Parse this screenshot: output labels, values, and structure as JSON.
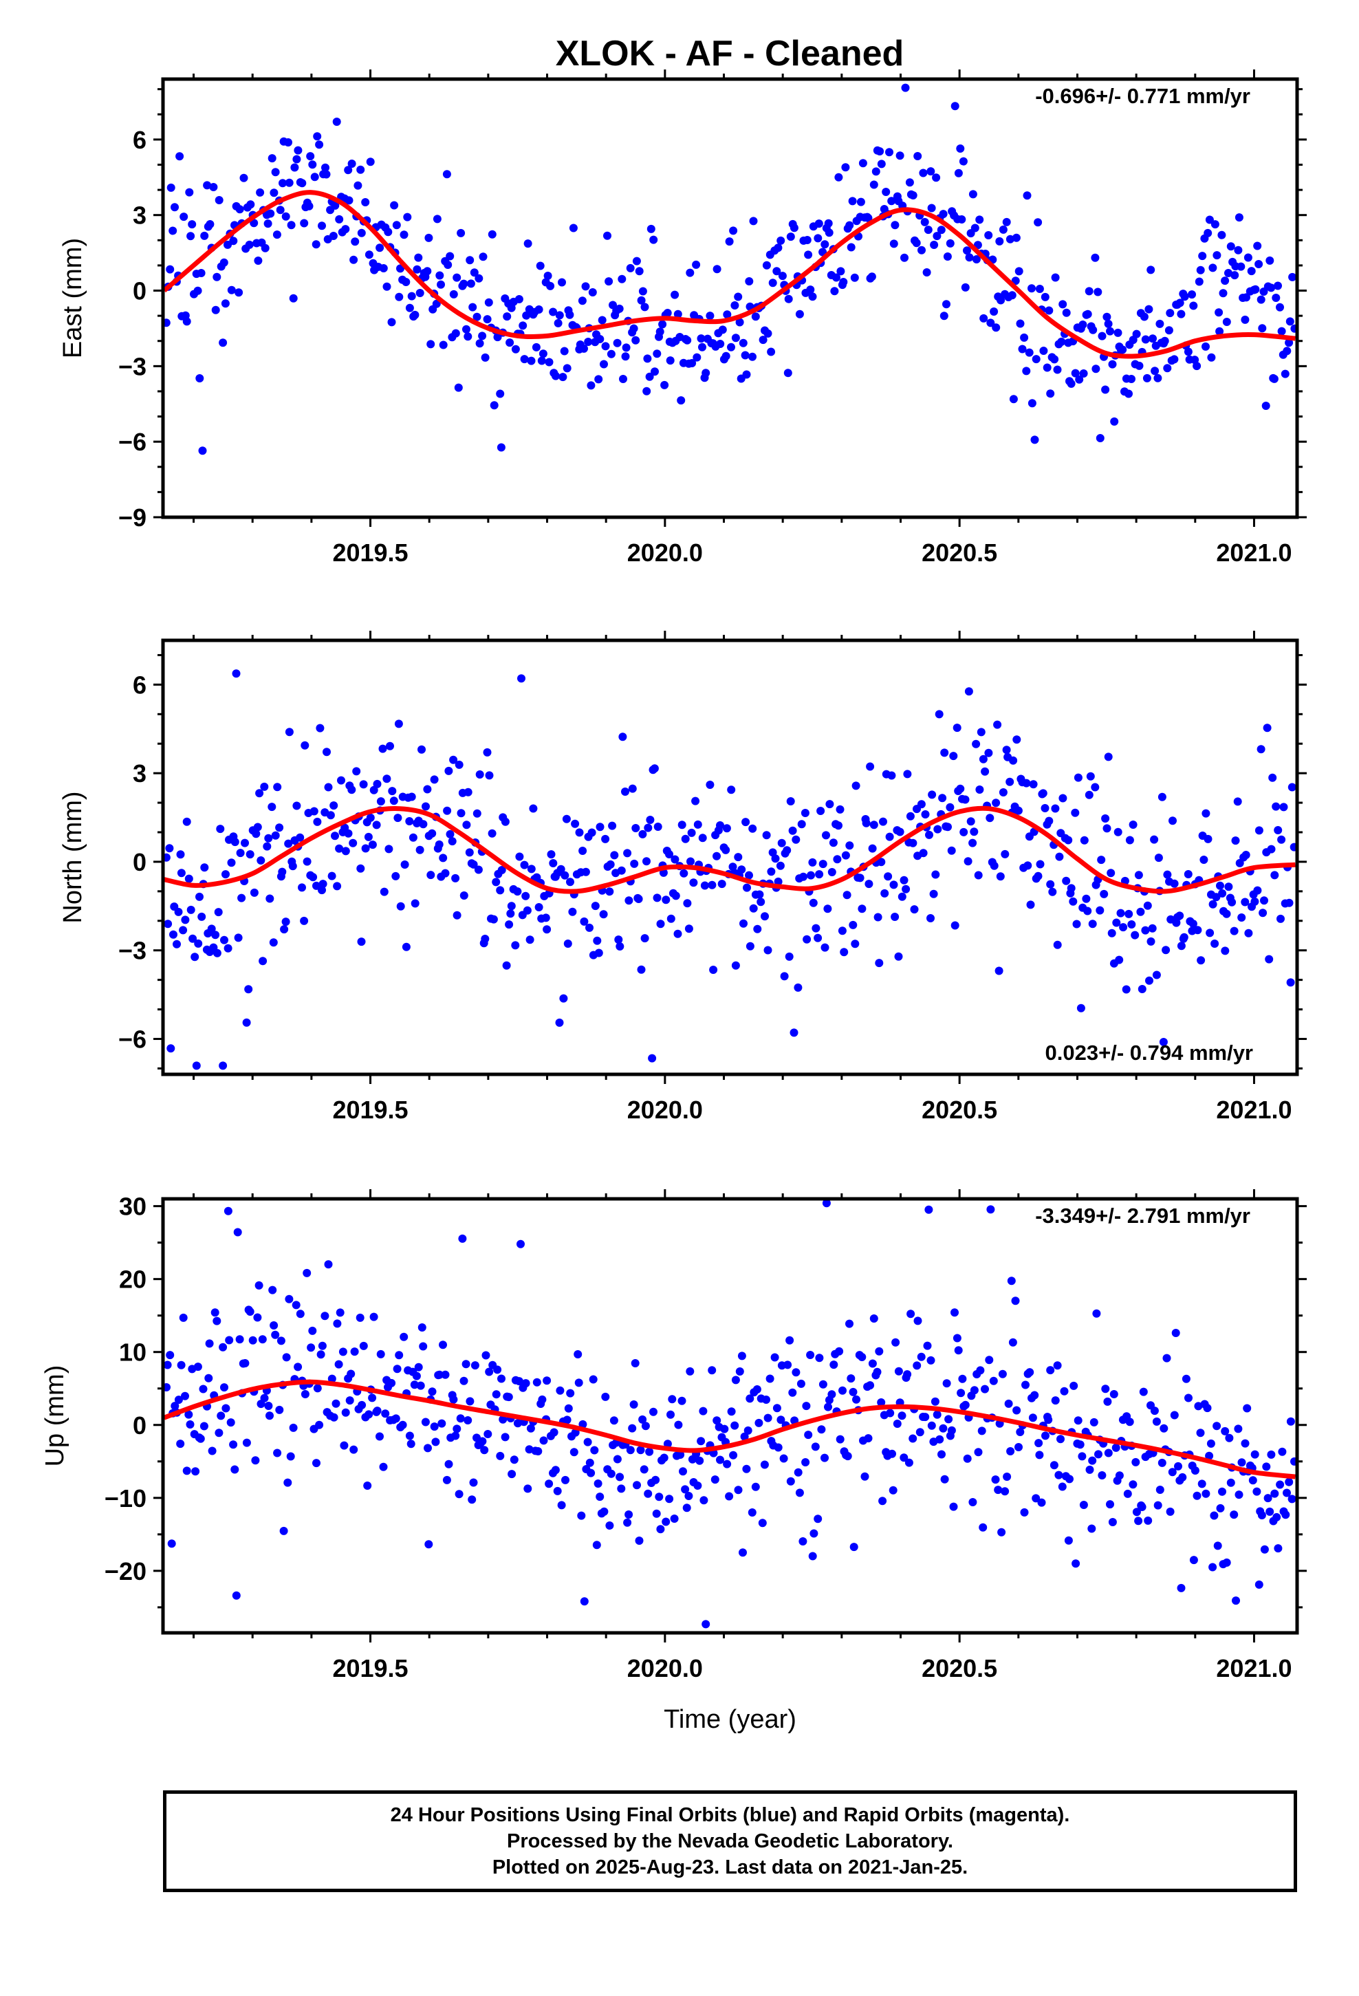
{
  "chart_data": [
    {
      "type": "scatter",
      "title": "XLOK  - AF - Cleaned",
      "xlabel": "",
      "ylabel": "East (mm)",
      "xlim": [
        2019.148,
        2021.073
      ],
      "ylim": [
        -9,
        8.4
      ],
      "xticks": [
        2019.5,
        2020.0,
        2020.5,
        2021.0
      ],
      "xtick_labels": [
        "2019.5",
        "2020.0",
        "2020.5",
        "2021.0"
      ],
      "yticks": [
        -9,
        -6,
        -3,
        0,
        3,
        6
      ],
      "ytick_labels": [
        "−9",
        "−6",
        "−3",
        "0",
        "3",
        "6"
      ],
      "rate_text": "-0.696+/- 0.771 mm/yr",
      "series": [
        {
          "role": "points",
          "color": "#0000ff",
          "mean": [
            [
              2019.15,
              0
            ],
            [
              2019.25,
              1.6
            ],
            [
              2019.32,
              3.1
            ],
            [
              2019.42,
              3.9
            ],
            [
              2019.5,
              2.8
            ],
            [
              2019.6,
              0.3
            ],
            [
              2019.7,
              -1.4
            ],
            [
              2019.78,
              -1.8
            ],
            [
              2019.85,
              -1.6
            ],
            [
              2019.93,
              -1.5
            ],
            [
              2020.0,
              -1.8
            ],
            [
              2020.1,
              -1.6
            ],
            [
              2020.18,
              -0.5
            ],
            [
              2020.25,
              1.0
            ],
            [
              2020.32,
              2.5
            ],
            [
              2020.4,
              3.3
            ],
            [
              2020.47,
              2.6
            ],
            [
              2020.55,
              0.7
            ],
            [
              2020.62,
              -0.6
            ],
            [
              2020.7,
              -2.0
            ],
            [
              2020.78,
              -2.8
            ],
            [
              2020.85,
              -2.3
            ],
            [
              2020.93,
              1.0
            ],
            [
              2021.0,
              0.3
            ],
            [
              2021.07,
              -0.8
            ]
          ]
        },
        {
          "role": "fit",
          "color": "#ff0000",
          "values": [
            [
              2019.15,
              0
            ],
            [
              2019.2,
              1.0
            ],
            [
              2019.25,
              2.0
            ],
            [
              2019.3,
              2.9
            ],
            [
              2019.35,
              3.6
            ],
            [
              2019.4,
              3.9
            ],
            [
              2019.45,
              3.5
            ],
            [
              2019.5,
              2.5
            ],
            [
              2019.55,
              1.2
            ],
            [
              2019.6,
              0
            ],
            [
              2019.65,
              -0.9
            ],
            [
              2019.7,
              -1.5
            ],
            [
              2019.75,
              -1.8
            ],
            [
              2019.8,
              -1.8
            ],
            [
              2019.85,
              -1.6
            ],
            [
              2019.9,
              -1.4
            ],
            [
              2019.95,
              -1.2
            ],
            [
              2020.0,
              -1.1
            ],
            [
              2020.05,
              -1.2
            ],
            [
              2020.1,
              -1.2
            ],
            [
              2020.15,
              -0.8
            ],
            [
              2020.2,
              0
            ],
            [
              2020.25,
              0.9
            ],
            [
              2020.3,
              1.9
            ],
            [
              2020.35,
              2.7
            ],
            [
              2020.4,
              3.2
            ],
            [
              2020.45,
              3.0
            ],
            [
              2020.5,
              2.2
            ],
            [
              2020.55,
              1.1
            ],
            [
              2020.6,
              0
            ],
            [
              2020.65,
              -1.1
            ],
            [
              2020.7,
              -1.9
            ],
            [
              2020.75,
              -2.5
            ],
            [
              2020.8,
              -2.6
            ],
            [
              2020.85,
              -2.4
            ],
            [
              2020.9,
              -2.0
            ],
            [
              2020.95,
              -1.8
            ],
            [
              2021.0,
              -1.75
            ],
            [
              2021.07,
              -1.9
            ]
          ]
        }
      ]
    },
    {
      "type": "scatter",
      "xlabel": "",
      "ylabel": "North (mm)",
      "xlim": [
        2019.148,
        2021.073
      ],
      "ylim": [
        -7.2,
        7.5
      ],
      "xticks": [
        2019.5,
        2020.0,
        2020.5,
        2021.0
      ],
      "xtick_labels": [
        "2019.5",
        "2020.0",
        "2020.5",
        "2021.0"
      ],
      "yticks": [
        -6,
        -3,
        0,
        3,
        6
      ],
      "ytick_labels": [
        "−6",
        "−3",
        "0",
        "3",
        "6"
      ],
      "rate_text": "0.023+/- 0.794 mm/yr",
      "series": [
        {
          "role": "points",
          "color": "#0000ff",
          "mean": [
            [
              2019.15,
              -0.8
            ],
            [
              2019.22,
              -1.2
            ],
            [
              2019.3,
              -0.5
            ],
            [
              2019.38,
              0.5
            ],
            [
              2019.46,
              1.0
            ],
            [
              2019.55,
              1.7
            ],
            [
              2019.62,
              1.2
            ],
            [
              2019.7,
              0.3
            ],
            [
              2019.78,
              -0.8
            ],
            [
              2019.85,
              -1.0
            ],
            [
              2019.92,
              -0.8
            ],
            [
              2020.0,
              -0.4
            ],
            [
              2020.08,
              -0.3
            ],
            [
              2020.15,
              -0.7
            ],
            [
              2020.22,
              -1.0
            ],
            [
              2020.3,
              -0.6
            ],
            [
              2020.38,
              0.5
            ],
            [
              2020.45,
              1.4
            ],
            [
              2020.52,
              2.2
            ],
            [
              2020.6,
              1.5
            ],
            [
              2020.67,
              0.6
            ],
            [
              2020.75,
              -0.8
            ],
            [
              2020.83,
              -1.5
            ],
            [
              2020.9,
              -1.6
            ],
            [
              2020.97,
              -0.3
            ],
            [
              2021.05,
              0
            ]
          ]
        },
        {
          "role": "fit",
          "color": "#ff0000",
          "values": [
            [
              2019.15,
              -0.6
            ],
            [
              2019.2,
              -0.8
            ],
            [
              2019.25,
              -0.7
            ],
            [
              2019.3,
              -0.4
            ],
            [
              2019.35,
              0.2
            ],
            [
              2019.4,
              0.8
            ],
            [
              2019.45,
              1.3
            ],
            [
              2019.5,
              1.7
            ],
            [
              2019.55,
              1.8
            ],
            [
              2019.6,
              1.6
            ],
            [
              2019.65,
              1.0
            ],
            [
              2019.7,
              0.3
            ],
            [
              2019.75,
              -0.4
            ],
            [
              2019.8,
              -0.9
            ],
            [
              2019.85,
              -1.0
            ],
            [
              2019.9,
              -0.8
            ],
            [
              2019.95,
              -0.5
            ],
            [
              2020.0,
              -0.2
            ],
            [
              2020.05,
              -0.2
            ],
            [
              2020.1,
              -0.4
            ],
            [
              2020.15,
              -0.7
            ],
            [
              2020.2,
              -0.85
            ],
            [
              2020.25,
              -0.9
            ],
            [
              2020.3,
              -0.6
            ],
            [
              2020.35,
              0
            ],
            [
              2020.4,
              0.7
            ],
            [
              2020.45,
              1.3
            ],
            [
              2020.5,
              1.7
            ],
            [
              2020.55,
              1.8
            ],
            [
              2020.6,
              1.5
            ],
            [
              2020.65,
              0.9
            ],
            [
              2020.7,
              0.1
            ],
            [
              2020.75,
              -0.6
            ],
            [
              2020.8,
              -0.9
            ],
            [
              2020.85,
              -1.0
            ],
            [
              2020.9,
              -0.8
            ],
            [
              2020.95,
              -0.5
            ],
            [
              2021.0,
              -0.2
            ],
            [
              2021.07,
              -0.1
            ]
          ]
        }
      ]
    },
    {
      "type": "scatter",
      "xlabel": "Time (year)",
      "ylabel": "Up (mm)",
      "xlim": [
        2019.148,
        2021.073
      ],
      "ylim": [
        -28.5,
        31
      ],
      "xticks": [
        2019.5,
        2020.0,
        2020.5,
        2021.0
      ],
      "xtick_labels": [
        "2019.5",
        "2020.0",
        "2020.5",
        "2021.0"
      ],
      "yticks": [
        -20,
        -10,
        0,
        10,
        20,
        30
      ],
      "ytick_labels": [
        "−20",
        "−10",
        "0",
        "10",
        "20",
        "30"
      ],
      "rate_text": "-3.349+/- 2.791 mm/yr",
      "series": [
        {
          "role": "points",
          "color": "#0000ff",
          "mean": [
            [
              2019.15,
              2
            ],
            [
              2019.22,
              4
            ],
            [
              2019.3,
              7
            ],
            [
              2019.38,
              8
            ],
            [
              2019.45,
              6
            ],
            [
              2019.52,
              5
            ],
            [
              2019.6,
              3
            ],
            [
              2019.7,
              1
            ],
            [
              2019.78,
              -1
            ],
            [
              2019.85,
              -3
            ],
            [
              2019.92,
              -5
            ],
            [
              2020.0,
              -6
            ],
            [
              2020.08,
              -4
            ],
            [
              2020.15,
              -2
            ],
            [
              2020.22,
              -1
            ],
            [
              2020.3,
              1
            ],
            [
              2020.38,
              3
            ],
            [
              2020.45,
              3
            ],
            [
              2020.52,
              2
            ],
            [
              2020.6,
              0
            ],
            [
              2020.68,
              -3
            ],
            [
              2020.75,
              -4
            ],
            [
              2020.83,
              -5
            ],
            [
              2020.9,
              -7
            ],
            [
              2020.97,
              -8
            ],
            [
              2021.05,
              -6
            ]
          ]
        },
        {
          "role": "fit",
          "color": "#ff0000",
          "values": [
            [
              2019.15,
              1
            ],
            [
              2019.2,
              2.5
            ],
            [
              2019.25,
              3.8
            ],
            [
              2019.3,
              4.9
            ],
            [
              2019.35,
              5.6
            ],
            [
              2019.4,
              5.9
            ],
            [
              2019.45,
              5.5
            ],
            [
              2019.5,
              4.8
            ],
            [
              2019.55,
              4.0
            ],
            [
              2019.6,
              3.3
            ],
            [
              2019.65,
              2.5
            ],
            [
              2019.7,
              1.8
            ],
            [
              2019.75,
              1.1
            ],
            [
              2019.8,
              0.4
            ],
            [
              2019.85,
              -0.4
            ],
            [
              2019.9,
              -1.4
            ],
            [
              2019.95,
              -2.5
            ],
            [
              2020.0,
              -3.2
            ],
            [
              2020.05,
              -3.5
            ],
            [
              2020.1,
              -3.0
            ],
            [
              2020.15,
              -2.0
            ],
            [
              2020.2,
              -0.6
            ],
            [
              2020.25,
              0.6
            ],
            [
              2020.3,
              1.6
            ],
            [
              2020.35,
              2.3
            ],
            [
              2020.4,
              2.5
            ],
            [
              2020.45,
              2.3
            ],
            [
              2020.5,
              1.8
            ],
            [
              2020.55,
              1.1
            ],
            [
              2020.6,
              0.3
            ],
            [
              2020.65,
              -0.6
            ],
            [
              2020.7,
              -1.4
            ],
            [
              2020.75,
              -2.1
            ],
            [
              2020.8,
              -2.8
            ],
            [
              2020.85,
              -3.6
            ],
            [
              2020.9,
              -4.5
            ],
            [
              2020.95,
              -5.5
            ],
            [
              2021.0,
              -6.5
            ],
            [
              2021.07,
              -7.1
            ]
          ]
        }
      ]
    }
  ],
  "footer": {
    "line1": "24 Hour Positions Using Final Orbits (blue) and Rapid Orbits (magenta).",
    "line2": "Processed by the Nevada Geodetic Laboratory.",
    "line3": "Plotted on 2025-Aug-23. Last data on 2021-Jan-25."
  }
}
